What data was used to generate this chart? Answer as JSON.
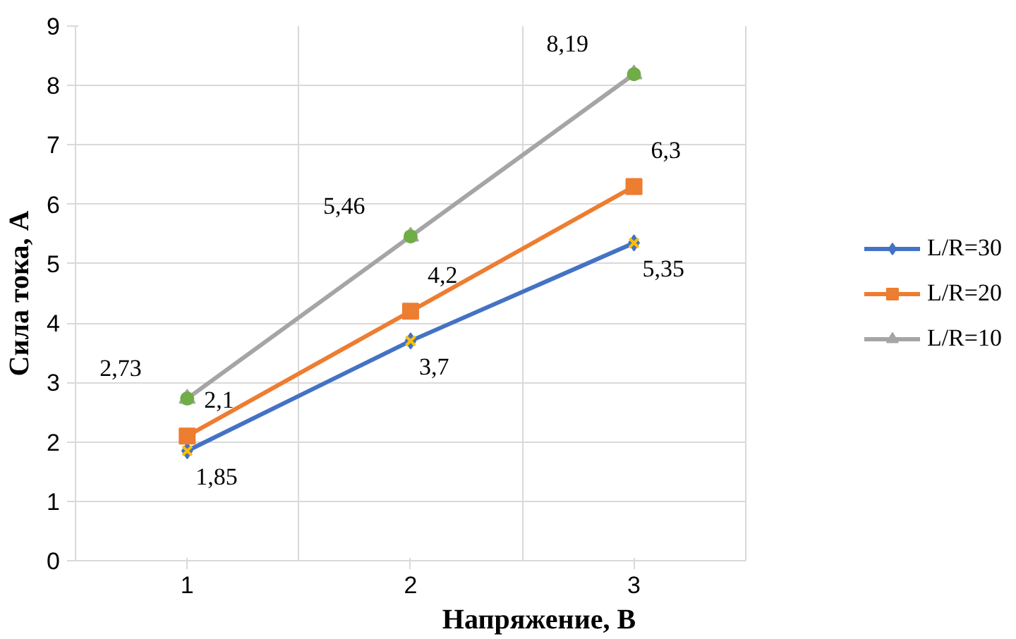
{
  "chart_data": {
    "type": "line",
    "xlabel": "Напряжение, В",
    "ylabel": "Сила тока, А",
    "categories": [
      "1",
      "2",
      "3"
    ],
    "ylim": [
      0,
      9
    ],
    "yticks": [
      0,
      1,
      2,
      3,
      4,
      5,
      6,
      7,
      8,
      9
    ],
    "grid": true,
    "legend": "right",
    "line_style": "solid",
    "series": [
      {
        "name": "L/R=30",
        "color": "#4472c4",
        "marker": "diamond",
        "values": [
          1.85,
          3.7,
          5.35
        ],
        "value_labels": [
          "1,85",
          "3,7",
          "5,35"
        ]
      },
      {
        "name": "L/R=20",
        "color": "#ed7d31",
        "marker": "square",
        "values": [
          2.1,
          4.2,
          6.3
        ],
        "value_labels": [
          "2,1",
          "4,2",
          "6,3"
        ]
      },
      {
        "name": "L/R=10",
        "color": "#a5a5a5",
        "marker": "triangle",
        "values": [
          2.73,
          5.46,
          8.19
        ],
        "value_labels": [
          "2,73",
          "5,46",
          "8,19"
        ]
      },
      {
        "type": "scatter",
        "color": "#70ad47",
        "marker": "circle",
        "values": [
          2.73,
          5.46,
          8.19
        ]
      },
      {
        "type": "scatter",
        "color": "#ffc000",
        "marker": "cross",
        "values": [
          1.85,
          3.7,
          5.35
        ]
      }
    ]
  }
}
